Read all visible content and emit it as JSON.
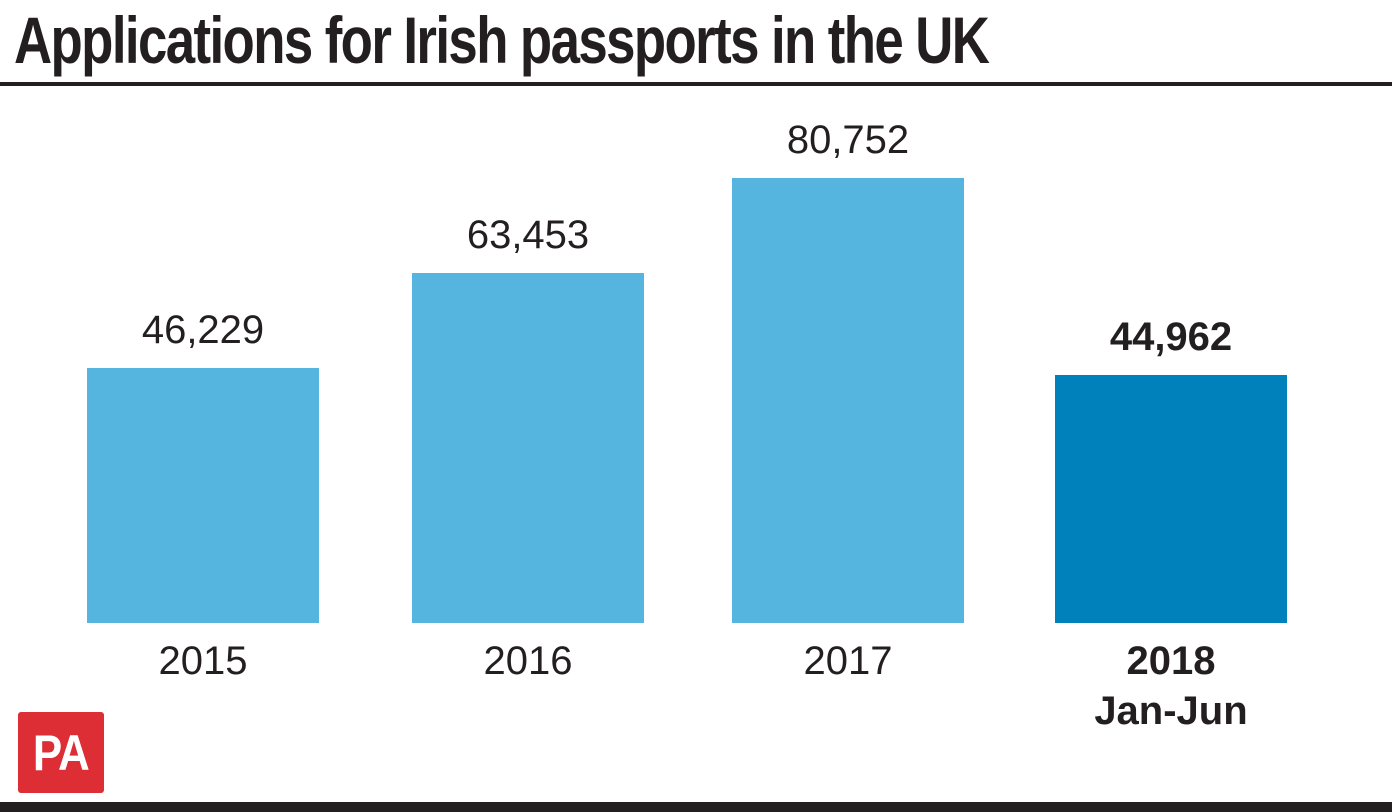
{
  "title": "Applications for Irish passports in the UK",
  "logo": {
    "text": "PA"
  },
  "colors": {
    "bar": "#56b5de",
    "bar_highlight": "#0081bc",
    "logo_background": "#dd2e35",
    "ink": "#231f20"
  },
  "chart_data": {
    "type": "bar",
    "title": "Applications for Irish passports in the UK",
    "categories": [
      "2015",
      "2016",
      "2017",
      "2018 Jan-Jun"
    ],
    "category_lines": [
      [
        "2015"
      ],
      [
        "2016"
      ],
      [
        "2017"
      ],
      [
        "2018",
        "Jan-Jun"
      ]
    ],
    "values": [
      46229,
      63453,
      80752,
      44962
    ],
    "value_labels": [
      "46,229",
      "63,453",
      "80,752",
      "44,962"
    ],
    "highlighted_index": 3,
    "bar_color": "#56b5de",
    "highlight_color": "#0081bc",
    "xlabel": "",
    "ylabel": "",
    "ylim": [
      0,
      80752
    ],
    "grid": false,
    "legend": "none"
  }
}
